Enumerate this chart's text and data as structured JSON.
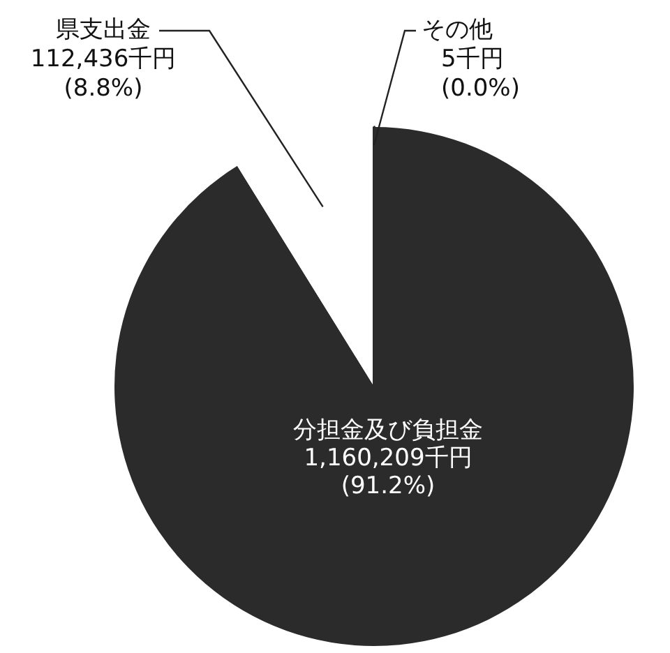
{
  "chart_data": {
    "type": "pie",
    "categories": [
      "分担金及び負担金",
      "県支出金",
      "その他"
    ],
    "values": [
      1160209,
      112436,
      5
    ],
    "colors": [
      "#2b2b2b",
      "#ffffff",
      "#2b2b2b"
    ],
    "value_labels": [
      "1,160,209千円\n(91.2%)",
      "112,436千円\n(8.8%)",
      "5千円\n(0.0%)"
    ],
    "legend": false
  }
}
